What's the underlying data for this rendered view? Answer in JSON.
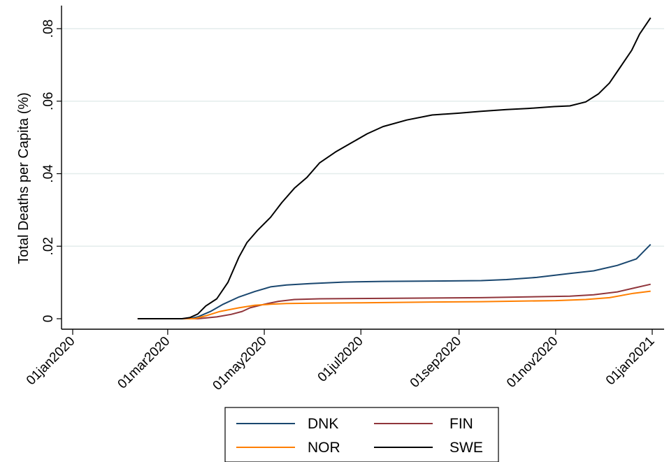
{
  "chart_data": {
    "type": "line",
    "title": "",
    "xlabel": "",
    "ylabel": "Total Deaths per Capita (%)",
    "x_ticks": [
      "2020-01-01",
      "2020-03-01",
      "2020-05-01",
      "2020-07-01",
      "2020-09-01",
      "2020-11-01",
      "2021-01-01"
    ],
    "x_tick_labels": [
      "01jan2020",
      "01mar2020",
      "01may2020",
      "01jul2020",
      "01sep2020",
      "01nov2020",
      "01jan2021"
    ],
    "y_ticks": [
      0,
      0.02,
      0.04,
      0.06,
      0.08
    ],
    "y_tick_labels": [
      "0",
      ".02",
      ".04",
      ".06",
      ".08"
    ],
    "xlim": [
      "2019-12-28",
      "2021-01-01"
    ],
    "ylim": [
      0,
      0.085
    ],
    "grid": "horizontal",
    "legend_position": "bottom",
    "series": [
      {
        "name": "DNK",
        "color": "#1a476f",
        "points": [
          [
            "2020-02-11",
            0
          ],
          [
            "2020-03-15",
            0
          ],
          [
            "2020-03-20",
            0.0005
          ],
          [
            "2020-03-28",
            0.002
          ],
          [
            "2020-04-05",
            0.004
          ],
          [
            "2020-04-15",
            0.006
          ],
          [
            "2020-04-25",
            0.0075
          ],
          [
            "2020-05-05",
            0.0088
          ],
          [
            "2020-05-15",
            0.0093
          ],
          [
            "2020-05-30",
            0.0097
          ],
          [
            "2020-06-20",
            0.0101
          ],
          [
            "2020-07-15",
            0.0103
          ],
          [
            "2020-08-15",
            0.0104
          ],
          [
            "2020-09-15",
            0.0105
          ],
          [
            "2020-10-01",
            0.0108
          ],
          [
            "2020-10-20",
            0.0114
          ],
          [
            "2020-11-10",
            0.0125
          ],
          [
            "2020-11-25",
            0.0132
          ],
          [
            "2020-12-10",
            0.0147
          ],
          [
            "2020-12-22",
            0.0165
          ],
          [
            "2020-12-31",
            0.0205
          ]
        ]
      },
      {
        "name": "FIN",
        "color": "#90353b",
        "points": [
          [
            "2020-02-11",
            0
          ],
          [
            "2020-03-20",
            0
          ],
          [
            "2020-04-01",
            0.0005
          ],
          [
            "2020-04-10",
            0.0012
          ],
          [
            "2020-04-17",
            0.002
          ],
          [
            "2020-04-22",
            0.003
          ],
          [
            "2020-05-01",
            0.004
          ],
          [
            "2020-05-10",
            0.0048
          ],
          [
            "2020-05-20",
            0.0053
          ],
          [
            "2020-06-05",
            0.0055
          ],
          [
            "2020-07-15",
            0.0056
          ],
          [
            "2020-09-15",
            0.0058
          ],
          [
            "2020-11-10",
            0.0062
          ],
          [
            "2020-11-25",
            0.0066
          ],
          [
            "2020-12-10",
            0.0074
          ],
          [
            "2020-12-20",
            0.0084
          ],
          [
            "2020-12-31",
            0.0095
          ]
        ]
      },
      {
        "name": "NOR",
        "color": "#ff7f00",
        "points": [
          [
            "2020-02-11",
            0
          ],
          [
            "2020-03-18",
            0
          ],
          [
            "2020-03-25",
            0.0008
          ],
          [
            "2020-04-03",
            0.002
          ],
          [
            "2020-04-15",
            0.003
          ],
          [
            "2020-04-25",
            0.0037
          ],
          [
            "2020-05-05",
            0.004
          ],
          [
            "2020-05-15",
            0.0042
          ],
          [
            "2020-06-01",
            0.0043
          ],
          [
            "2020-07-01",
            0.0044
          ],
          [
            "2020-08-15",
            0.0046
          ],
          [
            "2020-09-15",
            0.0047
          ],
          [
            "2020-11-01",
            0.005
          ],
          [
            "2020-11-20",
            0.0053
          ],
          [
            "2020-12-05",
            0.0058
          ],
          [
            "2020-12-20",
            0.007
          ],
          [
            "2020-12-31",
            0.0076
          ]
        ]
      },
      {
        "name": "SWE",
        "color": "#000000",
        "points": [
          [
            "2020-02-11",
            0
          ],
          [
            "2020-03-10",
            0
          ],
          [
            "2020-03-15",
            0.0003
          ],
          [
            "2020-03-20",
            0.0013
          ],
          [
            "2020-03-25",
            0.0035
          ],
          [
            "2020-04-01",
            0.0055
          ],
          [
            "2020-04-08",
            0.01
          ],
          [
            "2020-04-15",
            0.017
          ],
          [
            "2020-04-20",
            0.021
          ],
          [
            "2020-04-27",
            0.0245
          ],
          [
            "2020-05-05",
            0.028
          ],
          [
            "2020-05-12",
            0.032
          ],
          [
            "2020-05-20",
            0.036
          ],
          [
            "2020-05-28",
            0.039
          ],
          [
            "2020-06-05",
            0.043
          ],
          [
            "2020-06-15",
            0.046
          ],
          [
            "2020-06-25",
            0.0485
          ],
          [
            "2020-07-05",
            0.051
          ],
          [
            "2020-07-15",
            0.053
          ],
          [
            "2020-07-30",
            0.0548
          ],
          [
            "2020-08-15",
            0.0562
          ],
          [
            "2020-09-01",
            0.0567
          ],
          [
            "2020-09-15",
            0.0572
          ],
          [
            "2020-10-01",
            0.0577
          ],
          [
            "2020-10-15",
            0.058
          ],
          [
            "2020-10-31",
            0.0585
          ],
          [
            "2020-11-10",
            0.0587
          ],
          [
            "2020-11-20",
            0.0598
          ],
          [
            "2020-11-28",
            0.062
          ],
          [
            "2020-12-05",
            0.065
          ],
          [
            "2020-12-12",
            0.0695
          ],
          [
            "2020-12-19",
            0.074
          ],
          [
            "2020-12-24",
            0.0785
          ],
          [
            "2020-12-31",
            0.083
          ]
        ]
      }
    ]
  }
}
